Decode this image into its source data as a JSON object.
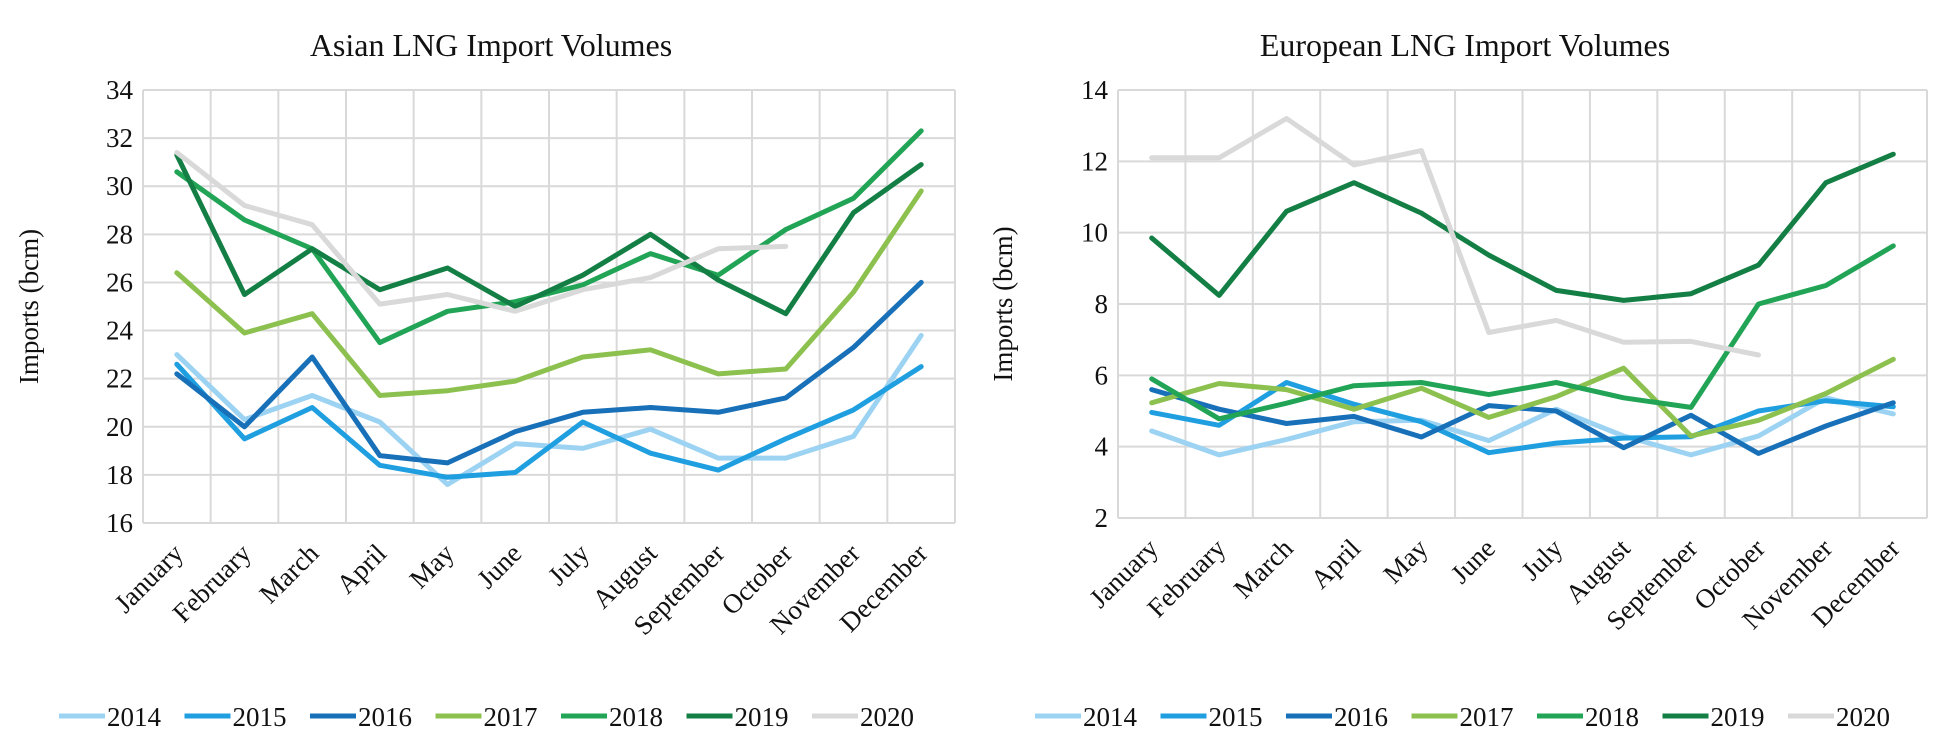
{
  "chart_data": [
    {
      "type": "line",
      "title": "Asian LNG Import Volumes",
      "xlabel": "",
      "ylabel": "Imports (bcm)",
      "ylim": [
        16,
        34
      ],
      "yticks": [
        16,
        18,
        20,
        22,
        24,
        26,
        28,
        30,
        32,
        34
      ],
      "grid": true,
      "legend": "bottom",
      "categories": [
        "January",
        "February",
        "March",
        "April",
        "May",
        "June",
        "July",
        "August",
        "September",
        "October",
        "November",
        "December"
      ],
      "series": [
        {
          "name": "2014",
          "color": "#9dd3f2",
          "values": [
            23.0,
            20.3,
            21.3,
            20.2,
            17.6,
            19.3,
            19.1,
            19.9,
            18.7,
            18.7,
            19.6,
            23.8
          ]
        },
        {
          "name": "2015",
          "color": "#1f9fe0",
          "values": [
            22.6,
            19.5,
            20.8,
            18.4,
            17.9,
            18.1,
            20.2,
            18.9,
            18.2,
            19.5,
            20.7,
            22.5
          ]
        },
        {
          "name": "2016",
          "color": "#1870b8",
          "values": [
            22.2,
            20.0,
            22.9,
            18.8,
            18.5,
            19.8,
            20.6,
            20.8,
            20.6,
            21.2,
            23.3,
            26.0
          ]
        },
        {
          "name": "2017",
          "color": "#8dc14f",
          "values": [
            26.4,
            23.9,
            24.7,
            21.3,
            21.5,
            21.9,
            22.9,
            23.2,
            22.2,
            22.4,
            25.6,
            29.8
          ]
        },
        {
          "name": "2018",
          "color": "#22a456",
          "values": [
            30.6,
            28.6,
            27.4,
            23.5,
            24.8,
            25.2,
            25.9,
            27.2,
            26.3,
            28.2,
            29.5,
            32.3
          ]
        },
        {
          "name": "2019",
          "color": "#137f44",
          "values": [
            31.3,
            25.5,
            27.4,
            25.7,
            26.6,
            25.0,
            26.3,
            28.0,
            26.1,
            24.7,
            28.9,
            30.9
          ]
        },
        {
          "name": "2020",
          "color": "#d9d9d9",
          "values": [
            31.4,
            29.2,
            28.4,
            25.1,
            25.5,
            24.8,
            25.7,
            26.2,
            27.4,
            27.5,
            null,
            null
          ]
        }
      ]
    },
    {
      "type": "line",
      "title": "European LNG Import Volumes",
      "xlabel": "",
      "ylabel": "Imports (bcm)",
      "ylim": [
        2,
        14
      ],
      "yticks": [
        2,
        4,
        6,
        8,
        10,
        12,
        14
      ],
      "grid": true,
      "legend": "bottom",
      "categories": [
        "January",
        "February",
        "March",
        "April",
        "May",
        "June",
        "July",
        "August",
        "September",
        "October",
        "November",
        "December"
      ],
      "series": [
        {
          "name": "2014",
          "color": "#9dd3f2",
          "values": [
            4.44,
            3.77,
            4.2,
            4.7,
            4.74,
            4.17,
            5.05,
            4.3,
            3.77,
            4.3,
            5.37,
            4.92
          ]
        },
        {
          "name": "2015",
          "color": "#1f9fe0",
          "values": [
            4.96,
            4.6,
            5.8,
            5.19,
            4.7,
            3.83,
            4.1,
            4.24,
            4.28,
            5.0,
            5.29,
            5.12
          ]
        },
        {
          "name": "2016",
          "color": "#1870b8",
          "values": [
            5.6,
            5.05,
            4.65,
            4.85,
            4.27,
            5.15,
            5.0,
            3.97,
            4.88,
            3.81,
            4.58,
            5.23
          ]
        },
        {
          "name": "2017",
          "color": "#8dc14f",
          "values": [
            5.23,
            5.77,
            5.6,
            5.05,
            5.64,
            4.82,
            5.4,
            6.2,
            4.3,
            4.74,
            5.49,
            6.45
          ]
        },
        {
          "name": "2018",
          "color": "#22a456",
          "values": [
            5.9,
            4.78,
            5.22,
            5.71,
            5.8,
            5.46,
            5.8,
            5.37,
            5.1,
            8.0,
            8.52,
            9.63
          ]
        },
        {
          "name": "2019",
          "color": "#137f44",
          "values": [
            9.85,
            8.24,
            10.6,
            11.4,
            10.55,
            9.37,
            8.38,
            8.1,
            8.29,
            9.09,
            11.4,
            12.2
          ]
        },
        {
          "name": "2020",
          "color": "#d9d9d9",
          "values": [
            12.1,
            12.1,
            13.2,
            11.9,
            12.3,
            7.2,
            7.54,
            6.93,
            6.95,
            6.57,
            null,
            null
          ]
        }
      ]
    }
  ]
}
